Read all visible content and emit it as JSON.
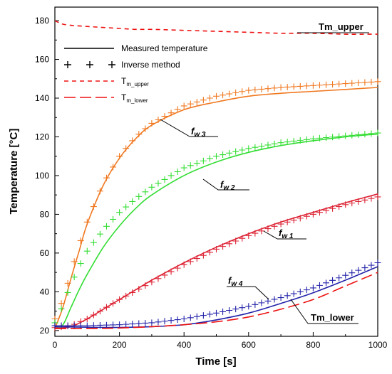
{
  "chart_data": {
    "type": "line",
    "xlabel": "Time [s]",
    "ylabel": "Temperature [°C]",
    "xlim": [
      0,
      1000
    ],
    "ylim": [
      17,
      187
    ],
    "xticks": [
      "0",
      "200",
      "400",
      "600",
      "800",
      "1000"
    ],
    "yticks": [
      "20",
      "40",
      "60",
      "80",
      "100",
      "120",
      "140",
      "160",
      "180"
    ],
    "grid": false,
    "legend_position": "top-left",
    "legend": {
      "measured": "Measured temperature",
      "inverse": "Inverse method",
      "upper_base": "T",
      "upper_sub": "m_upper",
      "lower_base": "T",
      "lower_sub": "m_lower"
    },
    "annotations": {
      "fw3": {
        "base": "f",
        "sub": "w 3"
      },
      "fw2": {
        "base": "f",
        "sub": "w 2"
      },
      "fw1": {
        "base": "f",
        "sub": "w 1"
      },
      "fw4": {
        "base": "f",
        "sub": "w 4"
      },
      "t_upper": "Tm_upper",
      "t_lower": "Tm_lower"
    },
    "colors": {
      "fw3": "#f07820",
      "fw2": "#33dd33",
      "fw1": "#dd2233",
      "fw4": "#2222aa",
      "boundary": "#ee1111"
    },
    "series": [
      {
        "key": "fw3",
        "style": "measured",
        "x": [
          0,
          25,
          50,
          75,
          100,
          150,
          200,
          250,
          300,
          400,
          500,
          600,
          700,
          800,
          900,
          1000
        ],
        "y": [
          21,
          32,
          47,
          61,
          75,
          95,
          109,
          119,
          126,
          134,
          138,
          141,
          142.5,
          143.5,
          144.5,
          145.5
        ]
      },
      {
        "key": "fw3",
        "style": "inverse",
        "x": [
          0,
          25,
          50,
          75,
          100,
          150,
          200,
          250,
          300,
          400,
          500,
          600,
          700,
          800,
          900,
          1000
        ],
        "y": [
          26,
          36,
          50,
          64,
          76,
          96,
          110,
          120,
          127,
          136,
          141,
          144,
          145.5,
          146.5,
          147.5,
          148.5
        ]
      },
      {
        "key": "fw2",
        "style": "measured",
        "x": [
          0,
          25,
          50,
          75,
          100,
          150,
          200,
          250,
          300,
          400,
          500,
          600,
          700,
          800,
          900,
          1000
        ],
        "y": [
          21,
          23,
          32,
          41,
          49,
          63,
          74,
          83,
          90,
          100,
          107,
          112,
          115.5,
          118,
          120,
          121.5
        ]
      },
      {
        "key": "fw2",
        "style": "inverse",
        "x": [
          0,
          25,
          50,
          75,
          100,
          150,
          200,
          250,
          300,
          400,
          500,
          600,
          700,
          800,
          900,
          1000
        ],
        "y": [
          24,
          33,
          44,
          53,
          61,
          72,
          81,
          88,
          94,
          104,
          110,
          114,
          117,
          119,
          120.5,
          122
        ]
      },
      {
        "key": "fw1",
        "style": "measured",
        "x": [
          0,
          50,
          100,
          150,
          200,
          250,
          300,
          400,
          500,
          600,
          700,
          800,
          900,
          1000
        ],
        "y": [
          21,
          22,
          26,
          31,
          36,
          41,
          46,
          55,
          63,
          70,
          76,
          81,
          86,
          90.5
        ]
      },
      {
        "key": "fw1",
        "style": "inverse",
        "x": [
          0,
          50,
          100,
          150,
          200,
          250,
          300,
          400,
          500,
          600,
          700,
          800,
          900,
          1000
        ],
        "y": [
          21.5,
          22.5,
          26,
          31,
          36,
          40.5,
          45,
          54,
          62,
          69,
          75,
          80,
          85,
          89
        ]
      },
      {
        "key": "fw4",
        "style": "measured",
        "x": [
          0,
          100,
          200,
          300,
          400,
          500,
          600,
          700,
          800,
          900,
          1000
        ],
        "y": [
          22,
          21.7,
          21.6,
          22,
          23,
          25.5,
          29,
          34,
          39.5,
          46,
          53
        ]
      },
      {
        "key": "fw4",
        "style": "inverse",
        "x": [
          0,
          100,
          200,
          300,
          400,
          500,
          600,
          700,
          800,
          900,
          1000
        ],
        "y": [
          22.5,
          22.5,
          23,
          24,
          26,
          29,
          32.5,
          37,
          42,
          48.5,
          55
        ]
      },
      {
        "key": "upper",
        "style": "upper",
        "x": [
          0,
          30,
          100,
          200,
          250,
          300,
          400,
          500,
          600,
          700,
          800,
          900,
          960,
          1000
        ],
        "y": [
          180,
          178,
          177,
          176,
          175.5,
          175.5,
          175,
          174.5,
          174,
          173.5,
          173.5,
          173,
          173,
          173
        ]
      },
      {
        "key": "lower",
        "style": "lower",
        "x": [
          0,
          100,
          200,
          300,
          400,
          500,
          600,
          700,
          800,
          900,
          1000
        ],
        "y": [
          21,
          21,
          21.3,
          22,
          23,
          24.5,
          27,
          31,
          36,
          43,
          50
        ]
      }
    ]
  }
}
